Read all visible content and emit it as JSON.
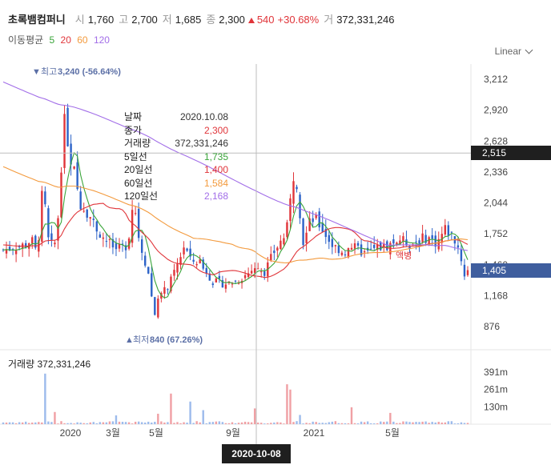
{
  "header": {
    "stock_name": "초록뱀컴퍼니",
    "open_label": "시",
    "open_value": "1,760",
    "high_label": "고",
    "high_value": "2,700",
    "low_label": "저",
    "low_value": "1,685",
    "close_label": "종",
    "close_value": "2,300",
    "change_value": "540",
    "change_pct": "+30.68%",
    "volume_label": "거",
    "volume_value": "372,331,246"
  },
  "ma_legend": {
    "label": "이동평균",
    "p5": "5",
    "p20": "20",
    "p60": "60",
    "p120": "120",
    "c5": "#3aa53a",
    "c20": "#e0353a",
    "c60": "#f39a3d",
    "c120": "#a26ee8"
  },
  "scale_selector": {
    "value": "Linear"
  },
  "tooltip": {
    "rows": [
      {
        "label": "날짜",
        "value": "2020.10.08",
        "color": "#333333"
      },
      {
        "label": "종가",
        "value": "2,300",
        "color": "#e0353a"
      },
      {
        "label": "거래량",
        "value": "372,331,246",
        "color": "#333333"
      },
      {
        "label": "5일선",
        "value": "1,735",
        "color": "#3aa53a"
      },
      {
        "label": "20일선",
        "value": "1,400",
        "color": "#e0353a"
      },
      {
        "label": "60일선",
        "value": "1,584",
        "color": "#f39a3d"
      },
      {
        "label": "120일선",
        "value": "2,168",
        "color": "#a26ee8"
      }
    ]
  },
  "volume_panel": {
    "label": "거래량",
    "value": "372,331,246"
  },
  "crosshair": {
    "date": "2020-10-08",
    "price": "2,515"
  },
  "last_price": "1,405",
  "chart_data": {
    "type": "candlestick",
    "y_ticks": [
      3212,
      2920,
      2628,
      2336,
      2044,
      1752,
      1460,
      1168,
      876
    ],
    "y_tick_labels": [
      "3,212",
      "2,920",
      "2,628",
      "2,336",
      "2,044",
      "1,752",
      "1,460",
      "1,168",
      "876"
    ],
    "ylim": [
      700,
      3400
    ],
    "x_tick_labels": [
      "2020",
      "3월",
      "5월",
      "9월",
      "2021",
      "5월"
    ],
    "volume_ticks": [
      "391m",
      "261m",
      "130m"
    ],
    "volume_tick_values": [
      391,
      261,
      130
    ],
    "volume_max": 450,
    "annotations": {
      "high_label": "최고",
      "high_text": "3,240 (-56.64%)",
      "high_value": 3240,
      "low_label": "최저",
      "low_text": "840 (67.26%)",
      "low_value": 840,
      "note": "액병"
    },
    "up_color": "#e0353a",
    "down_color": "#2d63c8",
    "up_vol_color": "#f0a0a4",
    "down_vol_color": "#9dbbec",
    "legend_note_color": "#e0353a"
  }
}
